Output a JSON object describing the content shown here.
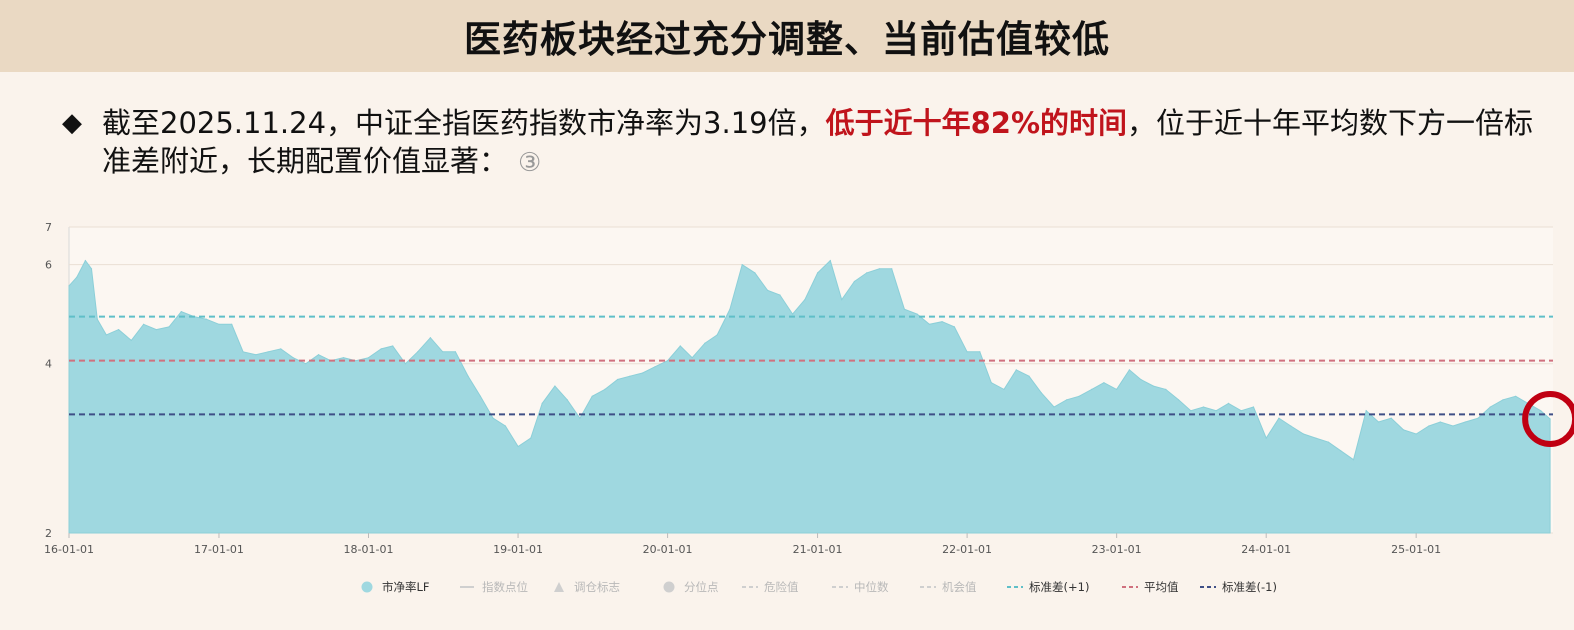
{
  "header": {
    "title": "医药板块经过充分调整、当前估值较低"
  },
  "bullet": {
    "symbol": "◆",
    "text_pre": "截至2025.11.24，中证全指医药指数市净率为3.19倍，",
    "text_highlight": "低于近十年82%的时间",
    "text_post": "，位于近十年平均数下方一倍标准差附近，长期配置价值显著：",
    "circle_num": "③"
  },
  "colors": {
    "area": "#9fd8e0",
    "std_plus": "#5fbfc8",
    "mean": "#d0707e",
    "std_minus": "#3f4f86",
    "marker": "#c00012",
    "highlight": "#c0141c"
  },
  "chart_data": {
    "type": "area",
    "title": "",
    "xlabel": "",
    "ylabel": "",
    "xlim": [
      "2016-01-01",
      "2025-12-01"
    ],
    "ylim": [
      2,
      7
    ],
    "y_scale": "log",
    "y_ticks": [
      2,
      4,
      6,
      7
    ],
    "x_ticks": [
      {
        "date": "2016-01-01",
        "label": "16-01-01"
      },
      {
        "date": "2017-01-01",
        "label": "17-01-01"
      },
      {
        "date": "2018-01-01",
        "label": "18-01-01"
      },
      {
        "date": "2019-01-01",
        "label": "19-01-01"
      },
      {
        "date": "2020-01-01",
        "label": "20-01-01"
      },
      {
        "date": "2021-01-01",
        "label": "21-01-01"
      },
      {
        "date": "2022-01-01",
        "label": "22-01-01"
      },
      {
        "date": "2023-01-01",
        "label": "23-01-01"
      },
      {
        "date": "2024-01-01",
        "label": "24-01-01"
      },
      {
        "date": "2025-01-01",
        "label": "25-01-01"
      }
    ],
    "series": [
      {
        "name": "市净率LF",
        "points": [
          [
            "2016-01-01",
            5.5
          ],
          [
            "2016-01-20",
            5.7
          ],
          [
            "2016-02-10",
            6.1
          ],
          [
            "2016-02-25",
            5.9
          ],
          [
            "2016-03-10",
            4.8
          ],
          [
            "2016-04-01",
            4.5
          ],
          [
            "2016-05-01",
            4.6
          ],
          [
            "2016-06-01",
            4.4
          ],
          [
            "2016-07-01",
            4.7
          ],
          [
            "2016-08-01",
            4.6
          ],
          [
            "2016-09-01",
            4.65
          ],
          [
            "2016-10-01",
            4.95
          ],
          [
            "2016-11-01",
            4.85
          ],
          [
            "2016-12-01",
            4.8
          ],
          [
            "2017-01-01",
            4.7
          ],
          [
            "2017-02-01",
            4.7
          ],
          [
            "2017-03-01",
            4.2
          ],
          [
            "2017-04-01",
            4.15
          ],
          [
            "2017-05-01",
            4.2
          ],
          [
            "2017-06-01",
            4.25
          ],
          [
            "2017-07-01",
            4.1
          ],
          [
            "2017-08-01",
            4.0
          ],
          [
            "2017-09-01",
            4.15
          ],
          [
            "2017-10-01",
            4.05
          ],
          [
            "2017-11-01",
            4.1
          ],
          [
            "2017-12-01",
            4.05
          ],
          [
            "2018-01-01",
            4.1
          ],
          [
            "2018-02-01",
            4.25
          ],
          [
            "2018-03-01",
            4.3
          ],
          [
            "2018-04-01",
            4.0
          ],
          [
            "2018-05-01",
            4.2
          ],
          [
            "2018-06-01",
            4.45
          ],
          [
            "2018-07-01",
            4.2
          ],
          [
            "2018-08-01",
            4.2
          ],
          [
            "2018-09-01",
            3.8
          ],
          [
            "2018-10-01",
            3.5
          ],
          [
            "2018-11-01",
            3.2
          ],
          [
            "2018-12-01",
            3.1
          ],
          [
            "2019-01-01",
            2.85
          ],
          [
            "2019-02-01",
            2.95
          ],
          [
            "2019-03-01",
            3.4
          ],
          [
            "2019-04-01",
            3.65
          ],
          [
            "2019-05-01",
            3.45
          ],
          [
            "2019-06-01",
            3.2
          ],
          [
            "2019-07-01",
            3.5
          ],
          [
            "2019-08-01",
            3.6
          ],
          [
            "2019-09-01",
            3.75
          ],
          [
            "2019-10-01",
            3.8
          ],
          [
            "2019-11-01",
            3.85
          ],
          [
            "2019-12-01",
            3.95
          ],
          [
            "2020-01-01",
            4.05
          ],
          [
            "2020-02-01",
            4.3
          ],
          [
            "2020-03-01",
            4.1
          ],
          [
            "2020-04-01",
            4.35
          ],
          [
            "2020-05-01",
            4.5
          ],
          [
            "2020-06-01",
            5.0
          ],
          [
            "2020-07-01",
            6.0
          ],
          [
            "2020-08-01",
            5.8
          ],
          [
            "2020-09-01",
            5.4
          ],
          [
            "2020-10-01",
            5.3
          ],
          [
            "2020-11-01",
            4.9
          ],
          [
            "2020-12-01",
            5.2
          ],
          [
            "2021-01-01",
            5.8
          ],
          [
            "2021-02-01",
            6.1
          ],
          [
            "2021-03-01",
            5.2
          ],
          [
            "2021-04-01",
            5.6
          ],
          [
            "2021-05-01",
            5.8
          ],
          [
            "2021-06-01",
            5.9
          ],
          [
            "2021-07-01",
            5.9
          ],
          [
            "2021-08-01",
            5.0
          ],
          [
            "2021-09-01",
            4.9
          ],
          [
            "2021-10-01",
            4.7
          ],
          [
            "2021-11-01",
            4.75
          ],
          [
            "2021-12-01",
            4.65
          ],
          [
            "2022-01-01",
            4.2
          ],
          [
            "2022-02-01",
            4.2
          ],
          [
            "2022-03-01",
            3.7
          ],
          [
            "2022-04-01",
            3.6
          ],
          [
            "2022-05-01",
            3.9
          ],
          [
            "2022-06-01",
            3.8
          ],
          [
            "2022-07-01",
            3.55
          ],
          [
            "2022-08-01",
            3.35
          ],
          [
            "2022-09-01",
            3.45
          ],
          [
            "2022-10-01",
            3.5
          ],
          [
            "2022-11-01",
            3.6
          ],
          [
            "2022-12-01",
            3.7
          ],
          [
            "2023-01-01",
            3.6
          ],
          [
            "2023-02-01",
            3.9
          ],
          [
            "2023-03-01",
            3.75
          ],
          [
            "2023-04-01",
            3.65
          ],
          [
            "2023-05-01",
            3.6
          ],
          [
            "2023-06-01",
            3.45
          ],
          [
            "2023-07-01",
            3.3
          ],
          [
            "2023-08-01",
            3.35
          ],
          [
            "2023-09-01",
            3.3
          ],
          [
            "2023-10-01",
            3.4
          ],
          [
            "2023-11-01",
            3.3
          ],
          [
            "2023-12-01",
            3.35
          ],
          [
            "2024-01-01",
            2.95
          ],
          [
            "2024-02-01",
            3.2
          ],
          [
            "2024-03-01",
            3.1
          ],
          [
            "2024-04-01",
            3.0
          ],
          [
            "2024-05-01",
            2.95
          ],
          [
            "2024-06-01",
            2.9
          ],
          [
            "2024-07-01",
            2.8
          ],
          [
            "2024-08-01",
            2.7
          ],
          [
            "2024-09-01",
            3.3
          ],
          [
            "2024-10-01",
            3.15
          ],
          [
            "2024-11-01",
            3.2
          ],
          [
            "2024-12-01",
            3.05
          ],
          [
            "2025-01-01",
            3.0
          ],
          [
            "2025-02-01",
            3.1
          ],
          [
            "2025-03-01",
            3.15
          ],
          [
            "2025-04-01",
            3.1
          ],
          [
            "2025-05-01",
            3.15
          ],
          [
            "2025-06-01",
            3.2
          ],
          [
            "2025-07-01",
            3.35
          ],
          [
            "2025-08-01",
            3.45
          ],
          [
            "2025-09-01",
            3.5
          ],
          [
            "2025-10-01",
            3.4
          ],
          [
            "2025-11-01",
            3.3
          ],
          [
            "2025-11-24",
            3.19
          ]
        ]
      }
    ],
    "reference_lines": [
      {
        "name": "标准差(+1)",
        "value": 4.85,
        "color": "#5fbfc8"
      },
      {
        "name": "平均值",
        "value": 4.05,
        "color": "#d0707e"
      },
      {
        "name": "标准差(-1)",
        "value": 3.25,
        "color": "#3f4f86"
      }
    ],
    "highlight_marker": {
      "date": "2025-11-24",
      "value": 3.19
    },
    "legend": {
      "position": "bottom",
      "items": [
        {
          "label": "市净率LF",
          "symbol": "circle",
          "active": true,
          "color": "#9fd8e0"
        },
        {
          "label": "指数点位",
          "symbol": "line",
          "active": false
        },
        {
          "label": "调仓标志",
          "symbol": "triangle",
          "active": false
        },
        {
          "label": "分位点",
          "symbol": "circle",
          "active": false
        },
        {
          "label": "危险值",
          "symbol": "dash",
          "active": false
        },
        {
          "label": "中位数",
          "symbol": "dash",
          "active": false
        },
        {
          "label": "机会值",
          "symbol": "dash",
          "active": false
        },
        {
          "label": "标准差(+1)",
          "symbol": "dash",
          "active": true,
          "color": "#5fbfc8"
        },
        {
          "label": "平均值",
          "symbol": "dash",
          "active": true,
          "color": "#d0707e"
        },
        {
          "label": "标准差(-1)",
          "symbol": "dash",
          "active": true,
          "color": "#3f4f86"
        }
      ]
    }
  }
}
